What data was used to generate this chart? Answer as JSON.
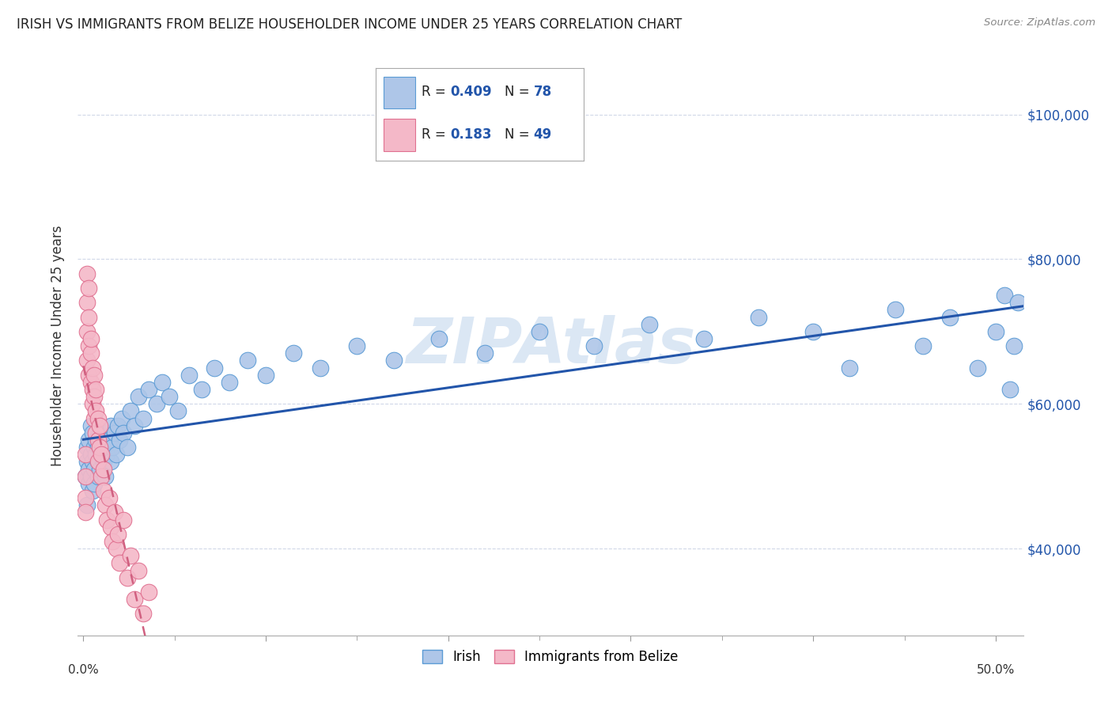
{
  "title": "IRISH VS IMMIGRANTS FROM BELIZE HOUSEHOLDER INCOME UNDER 25 YEARS CORRELATION CHART",
  "source": "Source: ZipAtlas.com",
  "ylabel": "Householder Income Under 25 years",
  "xlim": [
    -0.003,
    0.515
  ],
  "ylim": [
    28000,
    108000
  ],
  "irish_R": 0.409,
  "irish_N": 78,
  "belize_R": 0.183,
  "belize_N": 49,
  "irish_color": "#aec6e8",
  "irish_edge_color": "#5b9bd5",
  "belize_color": "#f4b8c8",
  "belize_edge_color": "#e07090",
  "trendline_irish_color": "#2255aa",
  "trendline_belize_color": "#d06080",
  "watermark_color": "#ccddf0",
  "ylabel_tick_vals": [
    40000,
    60000,
    80000,
    100000
  ],
  "ylabel_tick_labels": [
    "$40,000",
    "$60,000",
    "$80,000",
    "$100,000"
  ],
  "irish_x": [
    0.001,
    0.002,
    0.002,
    0.002,
    0.003,
    0.003,
    0.003,
    0.004,
    0.004,
    0.004,
    0.005,
    0.005,
    0.005,
    0.006,
    0.006,
    0.006,
    0.007,
    0.007,
    0.008,
    0.008,
    0.008,
    0.009,
    0.009,
    0.01,
    0.01,
    0.011,
    0.011,
    0.012,
    0.012,
    0.013,
    0.014,
    0.015,
    0.015,
    0.016,
    0.017,
    0.018,
    0.019,
    0.02,
    0.021,
    0.022,
    0.024,
    0.026,
    0.028,
    0.03,
    0.033,
    0.036,
    0.04,
    0.043,
    0.047,
    0.052,
    0.058,
    0.065,
    0.072,
    0.08,
    0.09,
    0.1,
    0.115,
    0.13,
    0.15,
    0.17,
    0.195,
    0.22,
    0.25,
    0.28,
    0.31,
    0.34,
    0.37,
    0.4,
    0.42,
    0.445,
    0.46,
    0.475,
    0.49,
    0.5,
    0.505,
    0.508,
    0.51,
    0.512
  ],
  "irish_y": [
    50000,
    52000,
    46000,
    54000,
    49000,
    55000,
    51000,
    50000,
    53000,
    57000,
    48000,
    52000,
    56000,
    51000,
    54000,
    49000,
    53000,
    55000,
    50000,
    54000,
    52000,
    56000,
    51000,
    53000,
    55000,
    52000,
    54000,
    50000,
    56000,
    53000,
    55000,
    52000,
    57000,
    54000,
    56000,
    53000,
    57000,
    55000,
    58000,
    56000,
    54000,
    59000,
    57000,
    61000,
    58000,
    62000,
    60000,
    63000,
    61000,
    59000,
    64000,
    62000,
    65000,
    63000,
    66000,
    64000,
    67000,
    65000,
    68000,
    66000,
    69000,
    67000,
    70000,
    68000,
    71000,
    69000,
    72000,
    70000,
    65000,
    73000,
    68000,
    72000,
    65000,
    70000,
    75000,
    62000,
    68000,
    74000
  ],
  "belize_x": [
    0.001,
    0.001,
    0.001,
    0.001,
    0.002,
    0.002,
    0.002,
    0.002,
    0.003,
    0.003,
    0.003,
    0.003,
    0.004,
    0.004,
    0.004,
    0.005,
    0.005,
    0.005,
    0.006,
    0.006,
    0.006,
    0.007,
    0.007,
    0.007,
    0.008,
    0.008,
    0.008,
    0.009,
    0.009,
    0.01,
    0.01,
    0.011,
    0.011,
    0.012,
    0.013,
    0.014,
    0.015,
    0.016,
    0.017,
    0.018,
    0.019,
    0.02,
    0.022,
    0.024,
    0.026,
    0.028,
    0.03,
    0.033,
    0.036
  ],
  "belize_y": [
    50000,
    47000,
    53000,
    45000,
    78000,
    74000,
    70000,
    66000,
    76000,
    72000,
    68000,
    64000,
    67000,
    63000,
    69000,
    65000,
    60000,
    62000,
    58000,
    61000,
    64000,
    56000,
    59000,
    62000,
    55000,
    58000,
    52000,
    54000,
    57000,
    53000,
    50000,
    48000,
    51000,
    46000,
    44000,
    47000,
    43000,
    41000,
    45000,
    40000,
    42000,
    38000,
    44000,
    36000,
    39000,
    33000,
    37000,
    31000,
    34000
  ]
}
